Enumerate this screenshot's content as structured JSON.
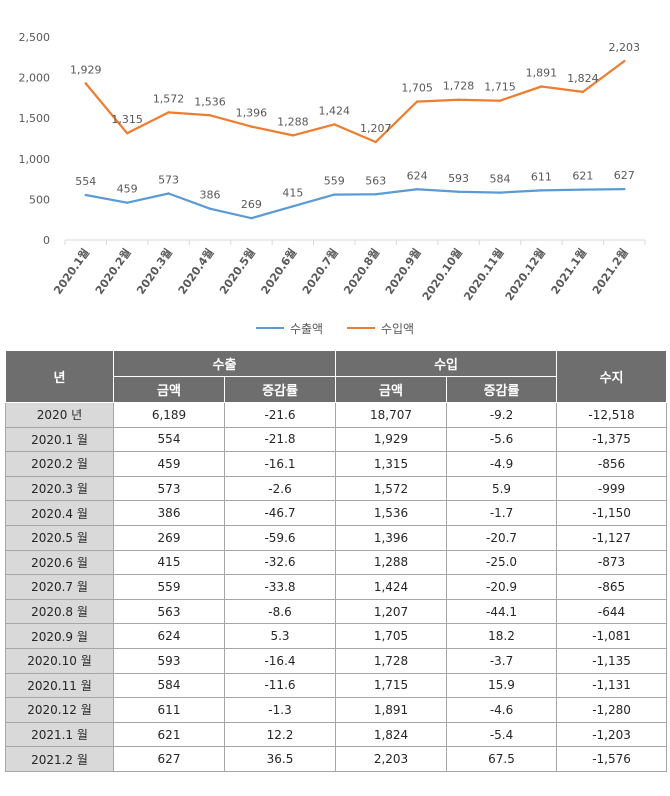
{
  "chart_data": {
    "type": "line",
    "categories": [
      "2020.1월",
      "2020.2월",
      "2020.3월",
      "2020.4월",
      "2020.5월",
      "2020.6월",
      "2020.7월",
      "2020.8월",
      "2020.9월",
      "2020.10월",
      "2020.11월",
      "2020.12월",
      "2021.1월",
      "2021.2월"
    ],
    "series": [
      {
        "name": "수출액",
        "color": "#5b9bd5",
        "values": [
          554,
          459,
          573,
          386,
          269,
          415,
          559,
          563,
          624,
          593,
          584,
          611,
          621,
          627
        ],
        "labels": [
          "554",
          "459",
          "573",
          "386",
          "269",
          "415",
          "559",
          "563",
          "624",
          "593",
          "584",
          "611",
          "621",
          "627"
        ]
      },
      {
        "name": "수입액",
        "color": "#ed7d31",
        "values": [
          1929,
          1315,
          1572,
          1536,
          1396,
          1288,
          1424,
          1207,
          1705,
          1728,
          1715,
          1891,
          1824,
          2203
        ],
        "labels": [
          "1,929",
          "1,315",
          "1,572",
          "1,536",
          "1,396",
          "1,288",
          "1,424",
          "1,207",
          "1,705",
          "1,728",
          "1,715",
          "1,891",
          "1,824",
          "2,203"
        ]
      }
    ],
    "ylim": [
      0,
      2500
    ],
    "yticks": [
      0,
      500,
      1000,
      1500,
      2000,
      2500
    ],
    "ytick_labels": [
      "0",
      "500",
      "1,000",
      "1,500",
      "2,000",
      "2,500"
    ],
    "grid": false,
    "legend": "bottom"
  },
  "table": {
    "headers": {
      "year": "년",
      "export": "수출",
      "import": "수입",
      "balance": "수지",
      "amount": "금액",
      "change_rate": "증감률"
    },
    "rows": [
      [
        "2020 년",
        "6,189",
        "-21.6",
        "18,707",
        "-9.2",
        "-12,518"
      ],
      [
        "2020.1 월",
        "554",
        "-21.8",
        "1,929",
        "-5.6",
        "-1,375"
      ],
      [
        "2020.2 월",
        "459",
        "-16.1",
        "1,315",
        "-4.9",
        "-856"
      ],
      [
        "2020.3 월",
        "573",
        "-2.6",
        "1,572",
        "5.9",
        "-999"
      ],
      [
        "2020.4 월",
        "386",
        "-46.7",
        "1,536",
        "-1.7",
        "-1,150"
      ],
      [
        "2020.5 월",
        "269",
        "-59.6",
        "1,396",
        "-20.7",
        "-1,127"
      ],
      [
        "2020.6 월",
        "415",
        "-32.6",
        "1,288",
        "-25.0",
        "-873"
      ],
      [
        "2020.7 월",
        "559",
        "-33.8",
        "1,424",
        "-20.9",
        "-865"
      ],
      [
        "2020.8 월",
        "563",
        "-8.6",
        "1,207",
        "-44.1",
        "-644"
      ],
      [
        "2020.9 월",
        "624",
        "5.3",
        "1,705",
        "18.2",
        "-1,081"
      ],
      [
        "2020.10 월",
        "593",
        "-16.4",
        "1,728",
        "-3.7",
        "-1,135"
      ],
      [
        "2020.11 월",
        "584",
        "-11.6",
        "1,715",
        "15.9",
        "-1,131"
      ],
      [
        "2020.12 월",
        "611",
        "-1.3",
        "1,891",
        "-4.6",
        "-1,280"
      ],
      [
        "2021.1 월",
        "621",
        "12.2",
        "1,824",
        "-5.4",
        "-1,203"
      ],
      [
        "2021.2 월",
        "627",
        "36.5",
        "2,203",
        "67.5",
        "-1,576"
      ]
    ]
  }
}
